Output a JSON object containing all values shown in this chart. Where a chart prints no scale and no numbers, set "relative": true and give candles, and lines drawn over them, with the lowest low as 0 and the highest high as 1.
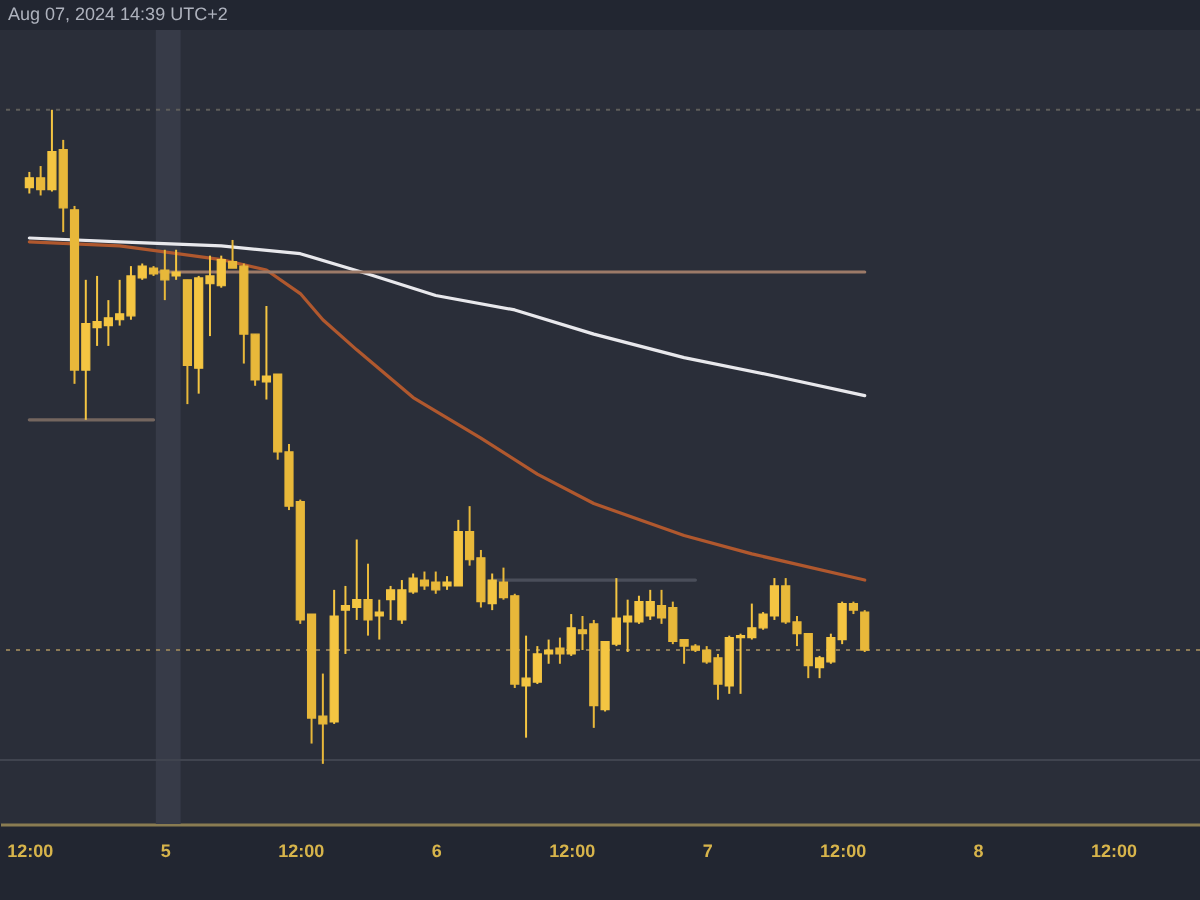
{
  "chart_data": {
    "type": "candlestick",
    "relative": true,
    "colors": [
      "#f4c542",
      "#e8b83a",
      "#f4c542",
      "#e8b83a",
      "#e8b83a",
      "#f4c542",
      "#f4c542",
      "#f4c542",
      "#f4c542",
      "#f4c542",
      "#f4c542",
      "#e8b83a",
      "#e8b83a",
      "#f4c542",
      "#e8b83a",
      "#f4c542",
      "#f4c542",
      "#f4c542",
      "#e8b83a",
      "#e8b83a",
      "#e8b83a",
      "#f4c542",
      "#e8b83a",
      "#e8b83a",
      "#e8b83a",
      "#e8b83a",
      "#e8b83a",
      "#f4c542",
      "#f4c542",
      "#f4c542",
      "#e8b83a",
      "#f4c542",
      "#f4c542",
      "#f4c542",
      "#f4c542",
      "#e8b83a",
      "#e8b83a",
      "#f4c542",
      "#f4c542",
      "#e8b83a",
      "#e8b83a",
      "#f4c542",
      "#e8b83a",
      "#e8b83a",
      "#f4c542",
      "#f4c542",
      "#f4c542",
      "#e8b83a",
      "#f4c542",
      "#e8b83a",
      "#e8b83a",
      "#f4c542",
      "#f4c542",
      "#f4c542",
      "#f4c542",
      "#f4c542",
      "#e8b83a",
      "#e8b83a",
      "#e8b83a",
      "#e8b83a",
      "#e8b83a",
      "#e8b83a",
      "#f4c542",
      "#f4c542",
      "#f4c542",
      "#f4c542",
      "#f4c542",
      "#e8b83a",
      "#e8b83a",
      "#e8b83a",
      "#f4c542",
      "#f4c542",
      "#f4c542",
      "#e8b83a",
      "#e8b83a"
    ],
    "x": [
      "2024-08-04T12:00",
      "2024-08-04T13:00",
      "2024-08-04T14:00",
      "2024-08-04T15:00",
      "2024-08-04T16:00",
      "2024-08-04T17:00",
      "2024-08-04T18:00",
      "2024-08-04T19:00",
      "2024-08-04T20:00",
      "2024-08-04T21:00",
      "2024-08-04T22:00",
      "2024-08-04T23:00",
      "2024-08-05T00:00",
      "2024-08-05T01:00",
      "2024-08-05T02:00",
      "2024-08-05T03:00",
      "2024-08-05T04:00",
      "2024-08-05T05:00",
      "2024-08-05T06:00",
      "2024-08-05T07:00",
      "2024-08-05T08:00",
      "2024-08-05T09:00",
      "2024-08-05T10:00",
      "2024-08-05T11:00",
      "2024-08-05T12:00",
      "2024-08-05T13:00",
      "2024-08-05T14:00",
      "2024-08-05T15:00",
      "2024-08-05T16:00",
      "2024-08-05T17:00",
      "2024-08-05T18:00",
      "2024-08-05T19:00",
      "2024-08-05T20:00",
      "2024-08-05T21:00",
      "2024-08-05T22:00",
      "2024-08-05T23:00",
      "2024-08-06T00:00",
      "2024-08-06T01:00",
      "2024-08-06T02:00",
      "2024-08-06T03:00",
      "2024-08-06T04:00",
      "2024-08-06T05:00",
      "2024-08-06T06:00",
      "2024-08-06T07:00",
      "2024-08-06T08:00",
      "2024-08-06T09:00",
      "2024-08-06T10:00",
      "2024-08-06T11:00",
      "2024-08-06T12:00",
      "2024-08-06T13:00",
      "2024-08-06T14:00",
      "2024-08-06T15:00",
      "2024-08-06T16:00",
      "2024-08-06T17:00",
      "2024-08-06T18:00",
      "2024-08-06T19:00",
      "2024-08-06T20:00",
      "2024-08-06T21:00",
      "2024-08-06T22:00",
      "2024-08-06T23:00",
      "2024-08-07T00:00",
      "2024-08-07T01:00",
      "2024-08-07T02:00",
      "2024-08-07T03:00",
      "2024-08-07T04:00",
      "2024-08-07T05:00",
      "2024-08-07T06:00",
      "2024-08-07T07:00",
      "2024-08-07T08:00",
      "2024-08-07T09:00",
      "2024-08-07T10:00",
      "2024-08-07T11:00",
      "2024-08-07T12:00",
      "2024-08-07T13:00",
      "2024-08-07T14:00"
    ],
    "ohlc": [
      [
        0.881,
        0.905,
        0.872,
        0.896
      ],
      [
        0.896,
        0.914,
        0.869,
        0.878
      ],
      [
        0.878,
        1,
        0.875,
        0.936
      ],
      [
        0.939,
        0.954,
        0.813,
        0.85
      ],
      [
        0.847,
        0.853,
        0.581,
        0.602
      ],
      [
        0.602,
        0.74,
        0.526,
        0.673
      ],
      [
        0.667,
        0.746,
        0.639,
        0.676
      ],
      [
        0.67,
        0.709,
        0.639,
        0.682
      ],
      [
        0.679,
        0.74,
        0.67,
        0.688
      ],
      [
        0.685,
        0.761,
        0.679,
        0.746
      ],
      [
        0.743,
        0.765,
        0.74,
        0.761
      ],
      [
        0.758,
        0.761,
        0.746,
        0.749
      ],
      [
        0.755,
        0.786,
        0.709,
        0.74
      ],
      [
        0.746,
        0.786,
        0.74,
        0.752
      ],
      [
        0.74,
        0.74,
        0.55,
        0.609
      ],
      [
        0.605,
        0.746,
        0.566,
        0.743
      ],
      [
        0.734,
        0.777,
        0.654,
        0.746
      ],
      [
        0.731,
        0.777,
        0.728,
        0.771
      ],
      [
        0.768,
        0.801,
        0.758,
        0.758
      ],
      [
        0.761,
        0.765,
        0.612,
        0.657
      ],
      [
        0.657,
        0.657,
        0.578,
        0.587
      ],
      [
        0.584,
        0.7,
        0.557,
        0.593
      ],
      [
        0.596,
        0.596,
        0.465,
        0.477
      ],
      [
        0.477,
        0.489,
        0.388,
        0.394
      ],
      [
        0.401,
        0.404,
        0.214,
        0.22
      ],
      [
        0.229,
        0.229,
        0.031,
        0.07
      ],
      [
        0.073,
        0.138,
        0,
        0.061
      ],
      [
        0.064,
        0.266,
        0.061,
        0.226
      ],
      [
        0.235,
        0.272,
        0.168,
        0.242
      ],
      [
        0.239,
        0.343,
        0.22,
        0.251
      ],
      [
        0.251,
        0.306,
        0.196,
        0.22
      ],
      [
        0.226,
        0.251,
        0.19,
        0.232
      ],
      [
        0.251,
        0.272,
        0.22,
        0.266
      ],
      [
        0.22,
        0.281,
        0.214,
        0.266
      ],
      [
        0.263,
        0.291,
        0.26,
        0.284
      ],
      [
        0.281,
        0.294,
        0.266,
        0.272
      ],
      [
        0.278,
        0.294,
        0.26,
        0.266
      ],
      [
        0.272,
        0.287,
        0.266,
        0.278
      ],
      [
        0.272,
        0.373,
        0.272,
        0.355
      ],
      [
        0.355,
        0.394,
        0.303,
        0.312
      ],
      [
        0.315,
        0.327,
        0.239,
        0.248
      ],
      [
        0.245,
        0.291,
        0.235,
        0.281
      ],
      [
        0.278,
        0.3,
        0.251,
        0.254
      ],
      [
        0.257,
        0.26,
        0.116,
        0.122
      ],
      [
        0.119,
        0.196,
        0.04,
        0.131
      ],
      [
        0.125,
        0.18,
        0.122,
        0.168
      ],
      [
        0.168,
        0.19,
        0.153,
        0.174
      ],
      [
        0.177,
        0.193,
        0.153,
        0.168
      ],
      [
        0.168,
        0.229,
        0.165,
        0.208
      ],
      [
        0.205,
        0.226,
        0.174,
        0.199
      ],
      [
        0.214,
        0.22,
        0.055,
        0.089
      ],
      [
        0.083,
        0.187,
        0.08,
        0.187
      ],
      [
        0.183,
        0.284,
        0.18,
        0.223
      ],
      [
        0.217,
        0.251,
        0.171,
        0.226
      ],
      [
        0.217,
        0.257,
        0.214,
        0.248
      ],
      [
        0.226,
        0.266,
        0.22,
        0.248
      ],
      [
        0.242,
        0.266,
        0.214,
        0.223
      ],
      [
        0.239,
        0.248,
        0.183,
        0.187
      ],
      [
        0.19,
        0.19,
        0.153,
        0.18
      ],
      [
        0.18,
        0.183,
        0.171,
        0.174
      ],
      [
        0.174,
        0.18,
        0.153,
        0.156
      ],
      [
        0.162,
        0.168,
        0.098,
        0.122
      ],
      [
        0.119,
        0.196,
        0.107,
        0.193
      ],
      [
        0.193,
        0.199,
        0.107,
        0.196
      ],
      [
        0.193,
        0.245,
        0.19,
        0.208
      ],
      [
        0.208,
        0.232,
        0.205,
        0.229
      ],
      [
        0.226,
        0.284,
        0.22,
        0.272
      ],
      [
        0.272,
        0.284,
        0.214,
        0.217
      ],
      [
        0.217,
        0.226,
        0.18,
        0.199
      ],
      [
        0.199,
        0.199,
        0.131,
        0.15
      ],
      [
        0.147,
        0.165,
        0.131,
        0.162
      ],
      [
        0.156,
        0.199,
        0.153,
        0.193
      ],
      [
        0.19,
        0.248,
        0.183,
        0.245
      ],
      [
        0.245,
        0.248,
        0.229,
        0.235
      ],
      [
        0.232,
        0.235,
        0.171,
        0.174
      ]
    ],
    "series": [
      {
        "type": "line",
        "color": "#e8e8ec",
        "x": [
          "2024-08-04T12:00",
          "2024-08-04T20:00",
          "2024-08-05T05:00",
          "2024-08-05T12:00",
          "2024-08-05T18:00",
          "2024-08-06T00:00",
          "2024-08-06T07:00",
          "2024-08-06T14:00",
          "2024-08-06T22:00",
          "2024-08-07T06:00",
          "2024-08-07T14:00"
        ],
        "values": [
          0.804,
          0.798,
          0.792,
          0.78,
          0.749,
          0.716,
          0.694,
          0.657,
          0.621,
          0.593,
          0.563
        ]
      },
      {
        "type": "line",
        "color": "#b0582e",
        "x": [
          "2024-08-04T12:00",
          "2024-08-04T20:00",
          "2024-08-05T05:00",
          "2024-08-05T09:00",
          "2024-08-05T12:00",
          "2024-08-05T14:00",
          "2024-08-05T17:00",
          "2024-08-05T22:00",
          "2024-08-06T04:00",
          "2024-08-06T09:00",
          "2024-08-06T14:00",
          "2024-08-06T22:00",
          "2024-08-07T04:00",
          "2024-08-07T14:00"
        ],
        "values": [
          0.798,
          0.792,
          0.771,
          0.755,
          0.719,
          0.679,
          0.633,
          0.56,
          0.498,
          0.443,
          0.398,
          0.349,
          0.321,
          0.281
        ]
      },
      {
        "type": "line",
        "color": "#9c7a68",
        "x": [
          "2024-08-04T23:30",
          "2024-08-07T14:00"
        ],
        "values": [
          0.752,
          0.752
        ]
      },
      {
        "type": "line",
        "color": "#74665f",
        "x": [
          "2024-08-04T12:00",
          "2024-08-04T23:00"
        ],
        "values": [
          0.526,
          0.526
        ]
      },
      {
        "type": "line",
        "color": "#4a4e5a",
        "x": [
          "2024-08-06T05:00",
          "2024-08-06T23:00"
        ],
        "values": [
          0.281,
          0.281
        ]
      }
    ],
    "ref_lines": [
      {
        "axis": "y",
        "value": 1,
        "color": "#5f5e5a",
        "line_style": "dotted"
      },
      {
        "axis": "y",
        "value": 0.174,
        "color": "#8c7a55",
        "line_style": "dotted"
      },
      {
        "axis": "y",
        "value": 0.006,
        "color": "#40444f",
        "line_style": "solid"
      }
    ],
    "bands": [
      {
        "axis": "x",
        "from": "2024-08-04T23:12",
        "to": "2024-08-05T01:24",
        "color": "#373b48"
      }
    ],
    "xlim": [
      "2024-08-04T09:24",
      "2024-08-08T19:42"
    ],
    "xticks": [
      {
        "value": "2024-08-04T12:00",
        "label": "12:00"
      },
      {
        "value": "2024-08-05",
        "label": "5"
      },
      {
        "value": "2024-08-05T12:00",
        "label": "12:00"
      },
      {
        "value": "2024-08-06",
        "label": "6"
      },
      {
        "value": "2024-08-06T12:00",
        "label": "12:00"
      },
      {
        "value": "2024-08-07",
        "label": "7"
      },
      {
        "value": "2024-08-07T12:00",
        "label": "12:00"
      },
      {
        "value": "2024-08-08",
        "label": "8"
      },
      {
        "value": "2024-08-08T12:00",
        "label": "12:00"
      }
    ],
    "tick_labels": "x",
    "annotations": [
      "Aug 07, 2024 14:39 UTC+2"
    ]
  }
}
